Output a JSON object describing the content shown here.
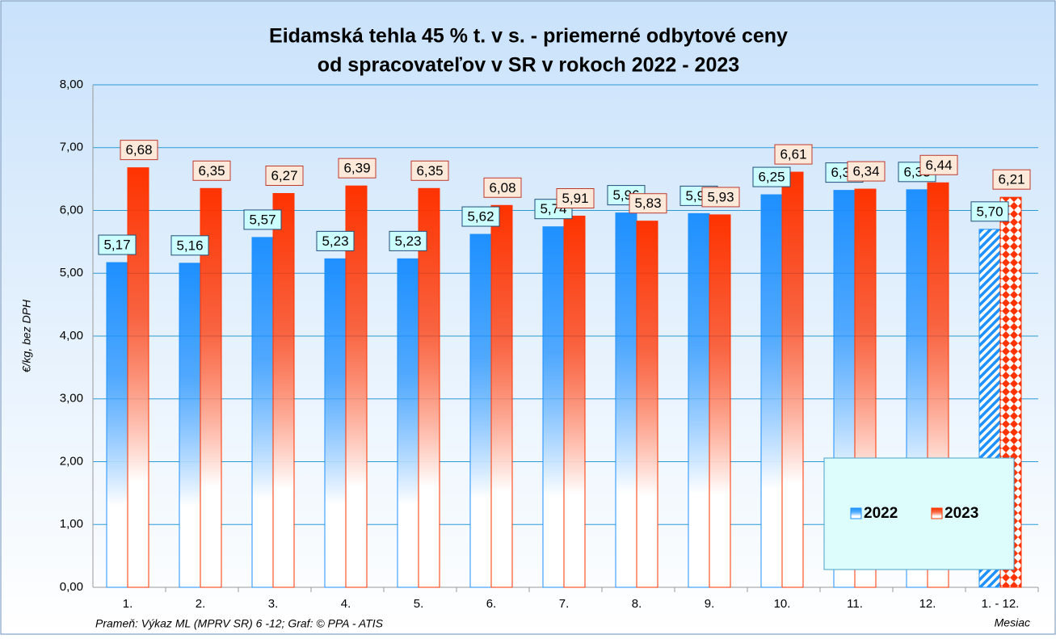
{
  "chart_data": {
    "type": "bar",
    "title": [
      "Eidamská tehla 45 % t. v s. - priemerné odbytové ceny",
      "od spracovateľov v SR v rokoch 2022 - 2023"
    ],
    "y_label": "€/kg, bez DPH",
    "x_label": "Mesiac",
    "source": "Prameň: Výkaz ML (MPRV SR) 6 -12; Graf: © PPA - ATIS",
    "categories": [
      "1.",
      "2.",
      "3.",
      "4.",
      "5.",
      "6.",
      "7.",
      "8.",
      "9.",
      "10.",
      "11.",
      "12.",
      "1. - 12."
    ],
    "series": [
      {
        "name": "2022",
        "color": "#1e90ff",
        "values": [
          5.17,
          5.16,
          5.57,
          5.23,
          5.23,
          5.62,
          5.74,
          5.96,
          5.95,
          6.25,
          6.32,
          6.33,
          5.7
        ],
        "value_labels": [
          "5,17",
          "5,16",
          "5,57",
          "5,23",
          "5,23",
          "5,62",
          "5,74",
          "5,96",
          "5,95",
          "6,25",
          "6,32",
          "6,33",
          "5,70"
        ]
      },
      {
        "name": "2023",
        "color": "#ff3300",
        "values": [
          6.68,
          6.35,
          6.27,
          6.39,
          6.35,
          6.08,
          5.91,
          5.83,
          5.93,
          6.61,
          6.34,
          6.44,
          6.21
        ],
        "value_labels": [
          "6,68",
          "6,35",
          "6,27",
          "6,39",
          "6,35",
          "6,08",
          "5,91",
          "5,83",
          "5,93",
          "6,61",
          "6,34",
          "6,44",
          "6,21"
        ]
      }
    ],
    "ylim": [
      0,
      8
    ],
    "yticks": [
      {
        "value": 0,
        "label": "0,00"
      },
      {
        "value": 1,
        "label": "1,00"
      },
      {
        "value": 2,
        "label": "2,00"
      },
      {
        "value": 3,
        "label": "3,00"
      },
      {
        "value": 4,
        "label": "4,00"
      },
      {
        "value": 5,
        "label": "5,00"
      },
      {
        "value": 6,
        "label": "6,00"
      },
      {
        "value": 7,
        "label": "7,00"
      },
      {
        "value": 8,
        "label": "8,00"
      }
    ],
    "grid": true,
    "legend": "lower right"
  }
}
